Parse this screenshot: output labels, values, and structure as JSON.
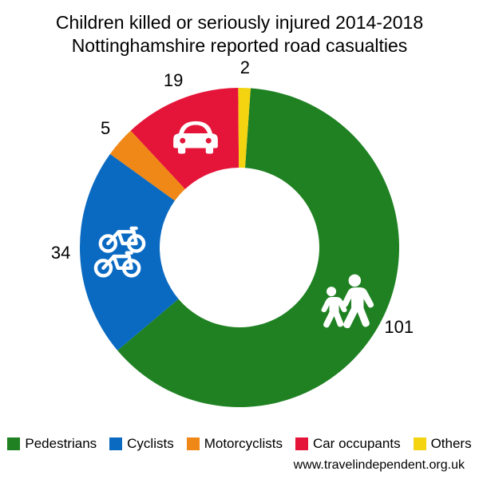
{
  "chart": {
    "type": "donut",
    "title_line1": "Children killed or seriously injured 2014-2018",
    "title_line2": "Nottinghamshire reported road casualties",
    "title_fontsize": 23,
    "label_fontsize": 22,
    "legend_fontsize": 17,
    "attribution_fontsize": 16,
    "background_color": "#ffffff",
    "text_color": "#000000",
    "outer_radius": 200,
    "inner_radius": 100,
    "start_angle_deg": 4,
    "segments": [
      {
        "name": "Pedestrians",
        "value": 101,
        "color": "#1f8122",
        "icon": "pedestrians"
      },
      {
        "name": "Cyclists",
        "value": 34,
        "color": "#0a6ac2",
        "icon": "bicycle"
      },
      {
        "name": "Motorcyclists",
        "value": 5,
        "color": "#f08817",
        "icon": null
      },
      {
        "name": "Car occupants",
        "value": 19,
        "color": "#e5153a",
        "icon": "car"
      },
      {
        "name": "Others",
        "value": 2,
        "color": "#f4d311",
        "icon": null
      }
    ],
    "attribution": "www.travelindependent.org.uk"
  }
}
